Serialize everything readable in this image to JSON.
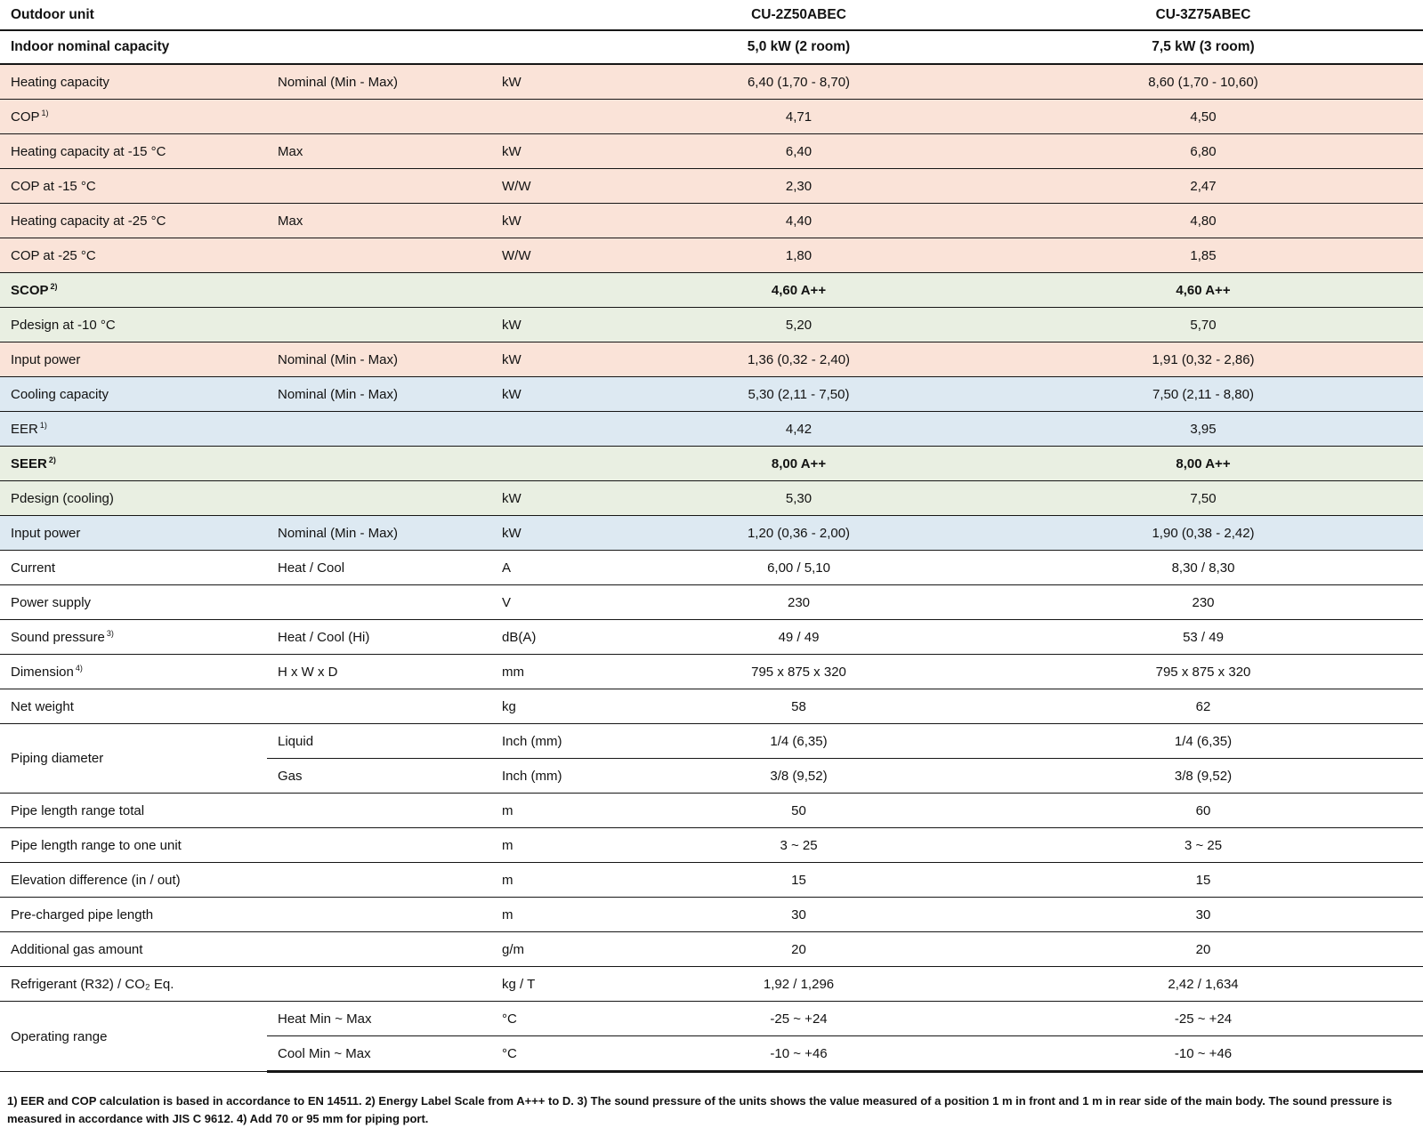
{
  "colors": {
    "heating": "#fae3d8",
    "season": "#e9efe2",
    "cooling": "#dde9f2"
  },
  "header": {
    "col_label": "Outdoor unit",
    "models": [
      "CU-2Z50ABEC",
      "CU-3Z75ABEC"
    ]
  },
  "capacity_row": {
    "label": "Indoor nominal capacity",
    "values": [
      "5,0 kW (2 room)",
      "7,5 kW (3 room)"
    ]
  },
  "rows": [
    {
      "label": "Heating capacity",
      "sub": "Nominal (Min - Max)",
      "unit": "kW",
      "v1": "6,40 (1,70 - 8,70)",
      "v2": "8,60 (1,70 - 10,60)",
      "bg": "heating"
    },
    {
      "label": "COP",
      "sup": "1)",
      "v1": "4,71",
      "v2": "4,50",
      "bg": "heating"
    },
    {
      "label": "Heating capacity at -15 °C",
      "sub": "Max",
      "unit": "kW",
      "v1": "6,40",
      "v2": "6,80",
      "bg": "heating"
    },
    {
      "label": "COP at -15 °C",
      "unit": "W/W",
      "v1": "2,30",
      "v2": "2,47",
      "bg": "heating"
    },
    {
      "label": "Heating capacity at -25 °C",
      "sub": "Max",
      "unit": "kW",
      "v1": "4,40",
      "v2": "4,80",
      "bg": "heating"
    },
    {
      "label": "COP at -25 °C",
      "unit": "W/W",
      "v1": "1,80",
      "v2": "1,85",
      "bg": "heating"
    },
    {
      "label": "SCOP",
      "sup": "2)",
      "v1": "4,60 A++",
      "v2": "4,60 A++",
      "bg": "season",
      "bold": true
    },
    {
      "label": "Pdesign at -10 °C",
      "unit": "kW",
      "v1": "5,20",
      "v2": "5,70",
      "bg": "season"
    },
    {
      "label": "Input power",
      "sub": "Nominal (Min - Max)",
      "unit": "kW",
      "v1": "1,36 (0,32 - 2,40)",
      "v2": "1,91 (0,32 - 2,86)",
      "bg": "heating"
    },
    {
      "label": "Cooling capacity",
      "sub": "Nominal (Min - Max)",
      "unit": "kW",
      "v1": "5,30 (2,11 - 7,50)",
      "v2": "7,50 (2,11 - 8,80)",
      "bg": "cooling"
    },
    {
      "label": "EER",
      "sup": "1)",
      "v1": "4,42",
      "v2": "3,95",
      "bg": "cooling"
    },
    {
      "label": "SEER",
      "sup": "2)",
      "v1": "8,00 A++",
      "v2": "8,00 A++",
      "bg": "season",
      "bold": true
    },
    {
      "label": "Pdesign (cooling)",
      "unit": "kW",
      "v1": "5,30",
      "v2": "7,50",
      "bg": "season"
    },
    {
      "label": "Input power",
      "sub": "Nominal (Min - Max)",
      "unit": "kW",
      "v1": "1,20 (0,36 - 2,00)",
      "v2": "1,90 (0,38 - 2,42)",
      "bg": "cooling"
    },
    {
      "label": "Current",
      "sub": "Heat / Cool",
      "unit": "A",
      "v1": "6,00 / 5,10",
      "v2": "8,30 / 8,30"
    },
    {
      "label": "Power supply",
      "unit": "V",
      "v1": "230",
      "v2": "230"
    },
    {
      "label": "Sound pressure",
      "sup": "3)",
      "sub": "Heat / Cool (Hi)",
      "unit": "dB(A)",
      "v1": "49 / 49",
      "v2": "53 / 49"
    },
    {
      "label": "Dimension",
      "sup": "4)",
      "sub": "H x W x D",
      "unit": "mm",
      "v1": "795 x 875 x 320",
      "v2": "795 x 875 x 320"
    },
    {
      "label": "Net weight",
      "unit": "kg",
      "v1": "58",
      "v2": "62"
    },
    {
      "label": "Piping diameter",
      "span": 2,
      "sub": "Liquid",
      "unit": "Inch (mm)",
      "v1": "1/4 (6,35)",
      "v2": "1/4 (6,35)"
    },
    {
      "cont": true,
      "sub": "Gas",
      "unit": "Inch (mm)",
      "v1": "3/8 (9,52)",
      "v2": "3/8 (9,52)"
    },
    {
      "label": "Pipe length range total",
      "unit": "m",
      "v1": "50",
      "v2": "60"
    },
    {
      "label": "Pipe length range to one unit",
      "unit": "m",
      "v1": "3 ~ 25",
      "v2": "3 ~ 25"
    },
    {
      "label": "Elevation difference (in / out)",
      "unit": "m",
      "v1": "15",
      "v2": "15"
    },
    {
      "label": "Pre-charged pipe length",
      "unit": "m",
      "v1": "30",
      "v2": "30"
    },
    {
      "label": "Additional gas amount",
      "unit": "g/m",
      "v1": "20",
      "v2": "20"
    },
    {
      "label": "Refrigerant (R32) / CO₂ Eq.",
      "unit": "kg / T",
      "v1": "1,92 / 1,296",
      "v2": "2,42 / 1,634"
    },
    {
      "label": "Operating range",
      "span": 2,
      "sub": "Heat Min ~ Max",
      "unit": "°C",
      "v1": "-25 ~ +24",
      "v2": "-25 ~ +24"
    },
    {
      "cont": true,
      "sub": "Cool Min ~ Max",
      "unit": "°C",
      "v1": "-10 ~ +46",
      "v2": "-10 ~ +46"
    }
  ],
  "footnote": "1) EER and COP calculation is based in accordance to EN 14511. 2) Energy Label Scale from A+++ to D. 3) The sound pressure of the units shows the value measured of a position 1 m in front and 1 m in rear side of the main body. The sound pressure is measured in accordance with JIS C 9612. 4) Add 70 or 95 mm for piping port."
}
